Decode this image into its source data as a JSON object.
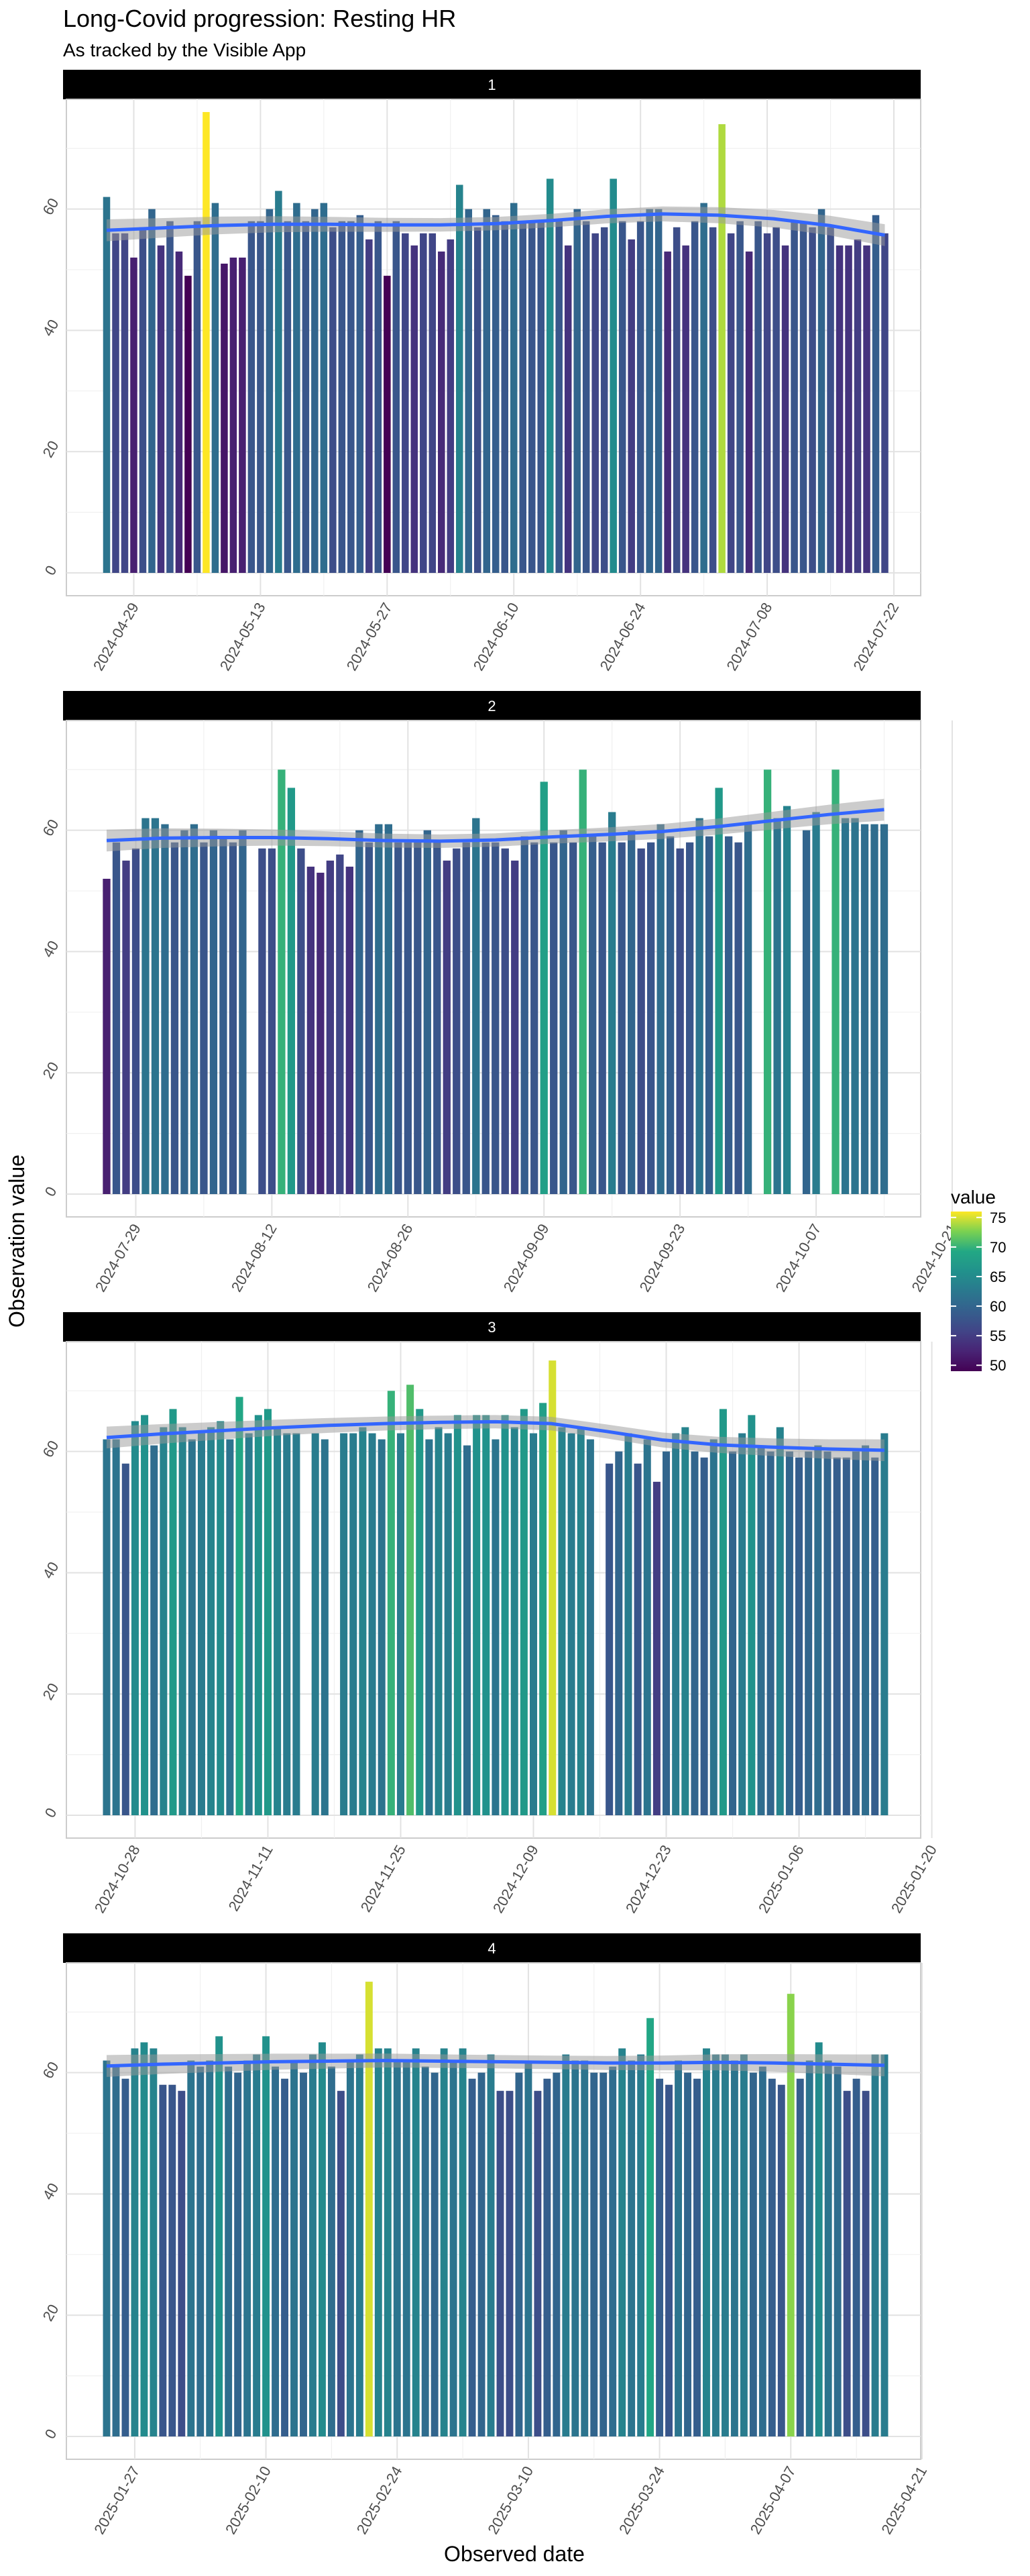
{
  "chart_data": {
    "type": "bar",
    "title": "Long-Covid progression: Resting HR",
    "subtitle": "As tracked by the Visible App",
    "xlabel": "Observed date",
    "ylabel": "Observation value",
    "legend": {
      "title": "value",
      "placement": "right",
      "ticks": [
        50,
        55,
        60,
        65,
        70,
        75
      ],
      "range": [
        49,
        76
      ],
      "colormap": "viridis"
    },
    "grid": true,
    "smoother": {
      "color": "#3366ff",
      "band_color": "#999999"
    },
    "ylim": [
      0,
      77
    ],
    "y_ticks": [
      0,
      20,
      40,
      60
    ],
    "panels": [
      {
        "label": "1",
        "x_start": "2024-04-26",
        "x_ticks": [
          "2024-04-29",
          "2024-05-13",
          "2024-05-27",
          "2024-06-10",
          "2024-06-24",
          "2024-07-08",
          "2024-07-22"
        ],
        "values": [
          62,
          56,
          56,
          52,
          57,
          60,
          54,
          58,
          53,
          49,
          58,
          76,
          61,
          51,
          52,
          52,
          58,
          58,
          60,
          63,
          58,
          61,
          58,
          60,
          61,
          57,
          58,
          58,
          59,
          55,
          58,
          49,
          58,
          56,
          54,
          56,
          56,
          53,
          55,
          64,
          60,
          57,
          60,
          59,
          58,
          61,
          58,
          58,
          58,
          65,
          58,
          54,
          60,
          58,
          56,
          57,
          65,
          58,
          55,
          58,
          60,
          60,
          53,
          57,
          54,
          58,
          61,
          57,
          74,
          56,
          58,
          53,
          58,
          56,
          57,
          54,
          58,
          58,
          57,
          60,
          57,
          54,
          54,
          55,
          54,
          59,
          56
        ],
        "smooth": [
          56.5,
          56.9,
          57.3,
          57.5,
          57.5,
          57.4,
          57.4,
          57.6,
          58.1,
          58.8,
          59.2,
          59.0,
          58.4,
          57.3,
          55.7
        ]
      },
      {
        "label": "2",
        "x_start": "2024-07-26",
        "x_ticks": [
          "2024-07-29",
          "2024-08-12",
          "2024-08-26",
          "2024-09-09",
          "2024-09-23",
          "2024-10-07",
          "2024-10-21"
        ],
        "values": [
          52,
          58,
          55,
          57,
          62,
          62,
          61,
          58,
          60,
          61,
          58,
          60,
          59,
          58,
          60,
          null,
          57,
          57,
          70,
          67,
          57,
          54,
          53,
          55,
          56,
          54,
          60,
          58,
          61,
          61,
          58,
          58,
          58,
          60,
          58,
          55,
          57,
          58,
          62,
          58,
          58,
          57,
          55,
          59,
          58,
          68,
          58,
          60,
          58,
          70,
          59,
          58,
          63,
          58,
          60,
          57,
          58,
          61,
          59,
          57,
          58,
          62,
          59,
          67,
          59,
          58,
          61,
          null,
          70,
          62,
          64,
          null,
          60,
          63,
          null,
          70,
          62,
          62,
          61,
          61,
          61
        ],
        "smooth": [
          58.3,
          58.7,
          58.8,
          58.8,
          58.6,
          58.3,
          58.2,
          58.4,
          58.9,
          59.3,
          59.8,
          60.6,
          61.6,
          62.6,
          63.4
        ]
      },
      {
        "label": "3",
        "x_start": "2024-10-25",
        "x_ticks": [
          "2024-10-28",
          "2024-11-11",
          "2024-11-25",
          "2024-12-09",
          "2024-12-23",
          "2025-01-06",
          "2025-01-20"
        ],
        "values": [
          62,
          62,
          58,
          65,
          66,
          61,
          64,
          67,
          64,
          62,
          63,
          64,
          65,
          62,
          69,
          63,
          66,
          67,
          64,
          63,
          63,
          null,
          63,
          62,
          null,
          63,
          63,
          64,
          63,
          62,
          70,
          63,
          71,
          67,
          62,
          64,
          63,
          66,
          61,
          66,
          66,
          62,
          66,
          64,
          67,
          63,
          68,
          75,
          64,
          63,
          64,
          62,
          null,
          58,
          60,
          63,
          58,
          62,
          55,
          60,
          63,
          64,
          60,
          59,
          62,
          67,
          60,
          63,
          66,
          61,
          60,
          64,
          60,
          59,
          60,
          61,
          60,
          59,
          59,
          60,
          61,
          59,
          63
        ],
        "smooth": [
          62.3,
          62.9,
          63.4,
          63.9,
          64.3,
          64.6,
          64.8,
          64.9,
          64.6,
          63.3,
          61.9,
          61.1,
          60.7,
          60.4,
          60.2
        ]
      },
      {
        "label": "4",
        "x_start": "2025-01-24",
        "x_ticks": [
          "2025-01-27",
          "2025-02-10",
          "2025-02-24",
          "2025-03-10",
          "2025-03-24",
          "2025-04-07",
          "2025-04-21"
        ],
        "values": [
          62,
          61,
          59,
          64,
          65,
          64,
          58,
          58,
          57,
          62,
          61,
          62,
          66,
          61,
          60,
          62,
          63,
          66,
          61,
          59,
          62,
          60,
          63,
          65,
          61,
          57,
          62,
          63,
          75,
          64,
          64,
          62,
          62,
          64,
          61,
          60,
          64,
          62,
          64,
          59,
          60,
          63,
          57,
          57,
          60,
          62,
          57,
          59,
          60,
          63,
          62,
          62,
          60,
          60,
          61,
          64,
          62,
          63,
          69,
          59,
          58,
          62,
          60,
          59,
          64,
          63,
          63,
          62,
          63,
          60,
          61,
          59,
          58,
          73,
          59,
          62,
          65,
          62,
          61,
          57,
          59,
          57,
          63,
          63
        ],
        "smooth": [
          61.1,
          61.4,
          61.6,
          61.8,
          61.9,
          62.0,
          61.9,
          61.8,
          61.7,
          61.6,
          61.6,
          61.7,
          61.6,
          61.4,
          61.2
        ]
      }
    ]
  }
}
